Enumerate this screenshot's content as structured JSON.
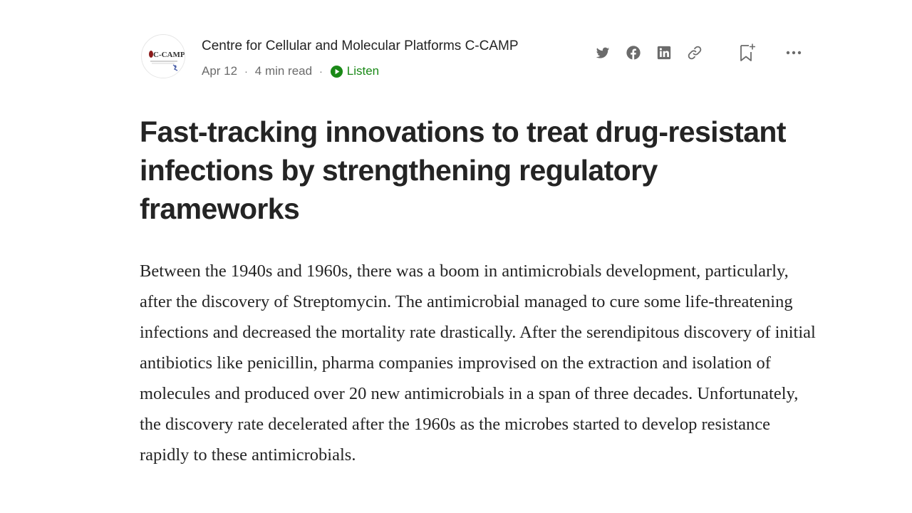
{
  "author": {
    "name": "Centre for Cellular and Molecular Platforms C-CAMP",
    "avatar_text": "C-CAMP",
    "avatar_icon": "c-camp-logo"
  },
  "meta": {
    "date": "Apr 12",
    "read_time": "4 min read",
    "listen_label": "Listen",
    "separator": "·"
  },
  "actions": [
    {
      "name": "share-twitter",
      "icon": "twitter-icon"
    },
    {
      "name": "share-facebook",
      "icon": "facebook-icon"
    },
    {
      "name": "share-linkedin",
      "icon": "linkedin-icon"
    },
    {
      "name": "copy-link",
      "icon": "link-icon"
    },
    {
      "name": "bookmark",
      "icon": "bookmark-add-icon"
    },
    {
      "name": "more-options",
      "icon": "more-icon"
    }
  ],
  "colors": {
    "text": "#242424",
    "muted": "#6b6b6b",
    "listen_green": "#1a8917",
    "icon_gray": "#6b6b6b"
  },
  "article": {
    "title": "Fast-tracking innovations to treat drug-resistant infections by strengthening regulatory frameworks",
    "paragraph": "Between the 1940s and 1960s, there was a boom in antimicrobials development, particularly, after the discovery of Streptomycin. The antimicrobial managed to cure some life-threatening infections and decreased the mortality rate drastically. After the serendipitous discovery of initial antibiotics like penicillin, pharma companies improvised on the extraction and isolation of molecules and produced over 20 new antimicrobials in a span of three decades. Unfortunately, the discovery rate decelerated after the 1960s as the microbes started to develop resistance rapidly to these antimicrobials."
  }
}
